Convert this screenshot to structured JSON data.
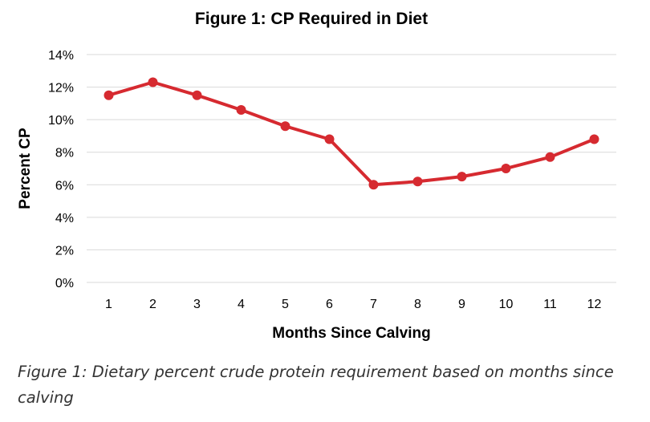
{
  "chart_data": {
    "type": "line",
    "title": "Figure 1: CP Required in Diet",
    "xlabel": "Months Since Calving",
    "ylabel": "Percent CP",
    "x": [
      1,
      2,
      3,
      4,
      5,
      6,
      7,
      8,
      9,
      10,
      11,
      12
    ],
    "x_tick_labels": [
      "1",
      "2",
      "3",
      "4",
      "5",
      "6",
      "7",
      "8",
      "9",
      "10",
      "11",
      "12"
    ],
    "y_tick_values": [
      0,
      2,
      4,
      6,
      8,
      10,
      12,
      14
    ],
    "y_tick_labels": [
      "0%",
      "2%",
      "4%",
      "6%",
      "8%",
      "10%",
      "12%",
      "14%"
    ],
    "ylim": [
      0,
      14
    ],
    "grid": true,
    "legend": "none",
    "series": [
      {
        "values": [
          11.5,
          12.3,
          11.5,
          10.6,
          9.6,
          8.8,
          6.0,
          6.2,
          6.5,
          7.0,
          7.7,
          8.8
        ],
        "color": "#d62a30"
      }
    ]
  },
  "caption": "Figure 1: Dietary percent crude protein requirement based on months since calving"
}
